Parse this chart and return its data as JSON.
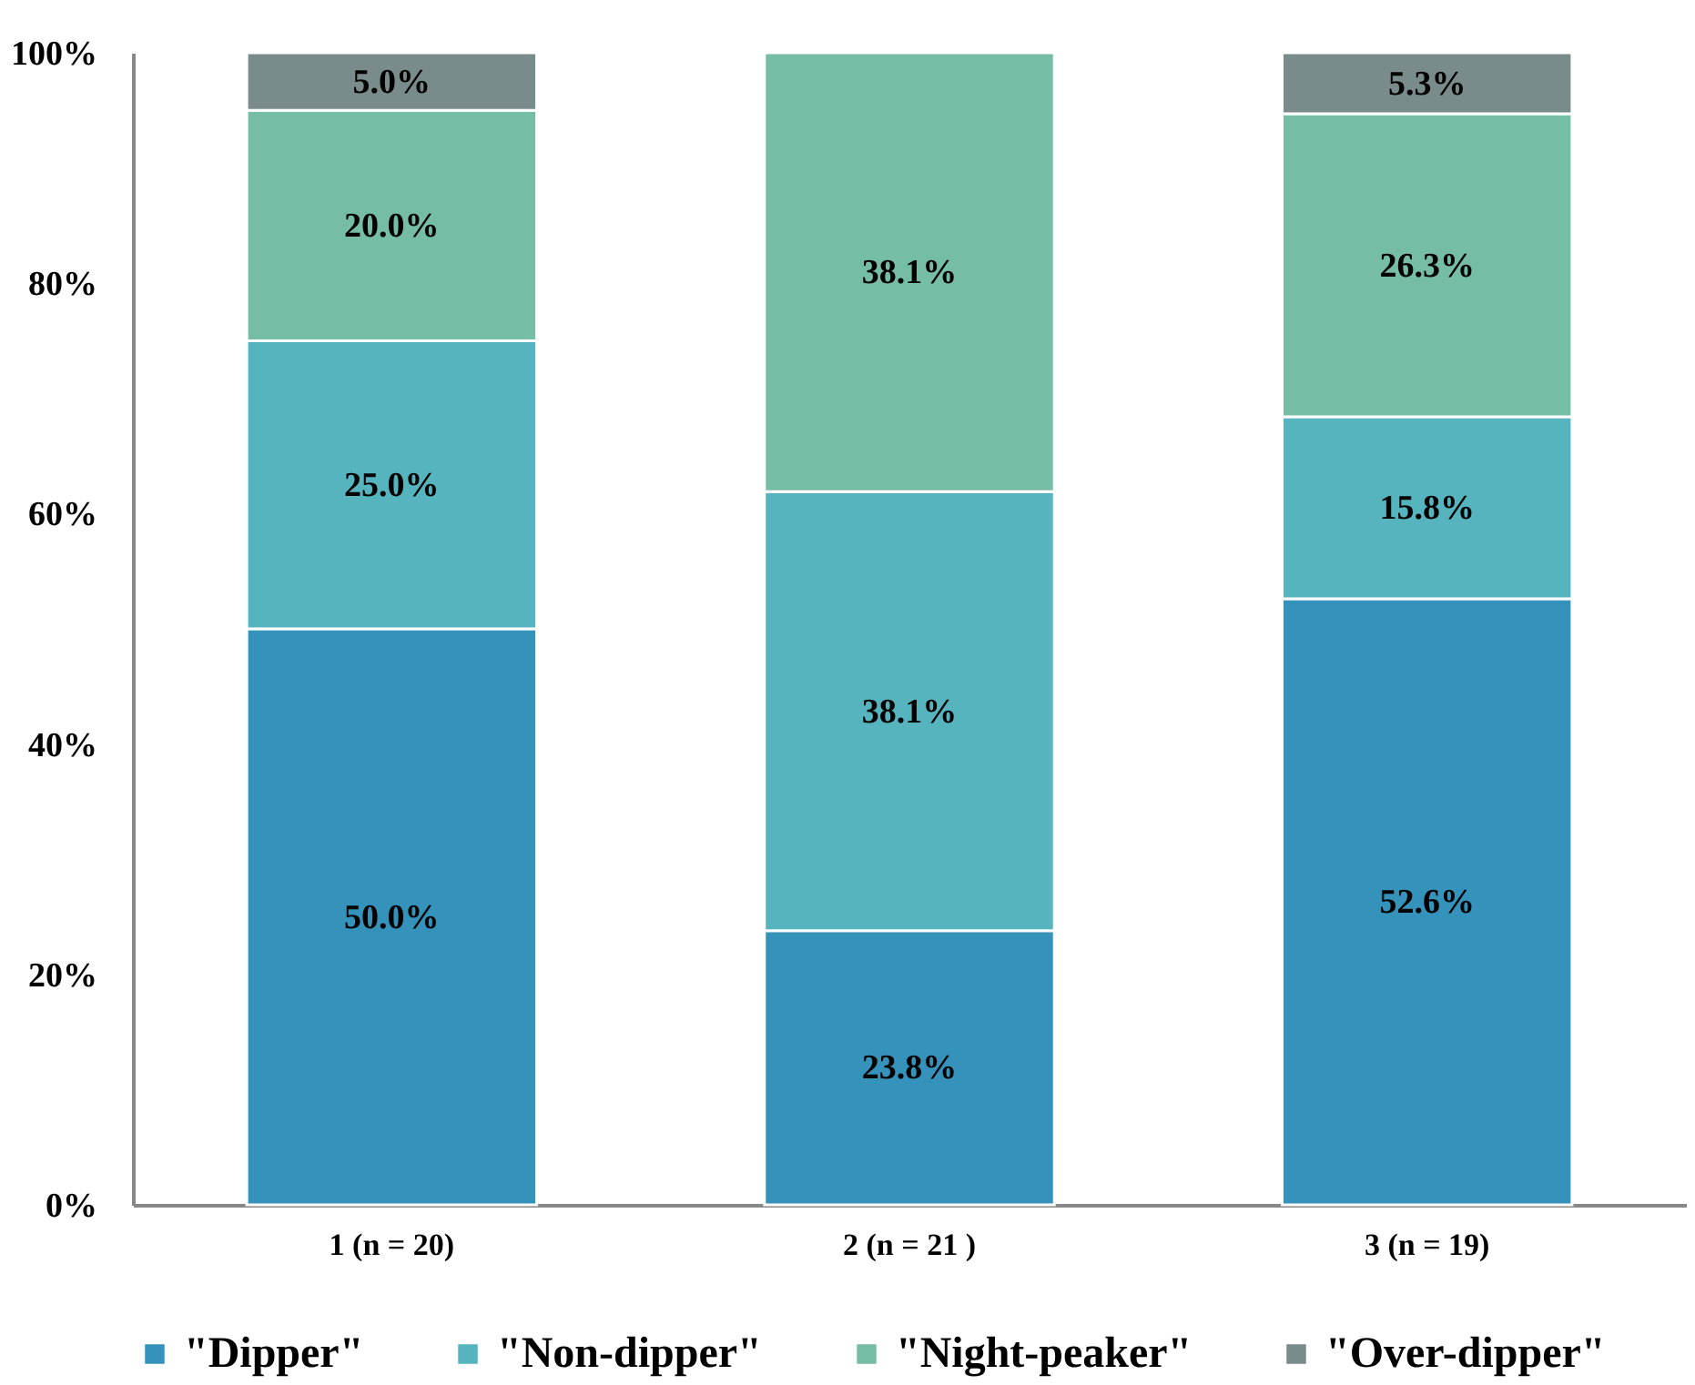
{
  "chart_data": {
    "type": "bar",
    "stacked": true,
    "categories": [
      "1 (n = 20)",
      "2 (n = 21 )",
      "3 (n = 19)"
    ],
    "series": [
      {
        "name": "\"Dipper\"",
        "color": "#3593bb",
        "values": [
          50.0,
          23.8,
          52.6
        ],
        "value_labels": [
          "50.0%",
          "23.8%",
          "52.6%"
        ]
      },
      {
        "name": "\"Non-dipper\"",
        "color": "#56b4bf",
        "values": [
          25.0,
          38.1,
          15.8
        ],
        "value_labels": [
          "25.0%",
          "38.1%",
          "15.8%"
        ]
      },
      {
        "name": "\"Night-peaker\"",
        "color": "#76bda6",
        "values": [
          20.0,
          38.1,
          26.3
        ],
        "value_labels": [
          "20.0%",
          "38.1%",
          "26.3%"
        ]
      },
      {
        "name": "\"Over-dipper\"",
        "color": "#7a8b8c",
        "values": [
          5.0,
          null,
          5.3
        ],
        "value_labels": [
          "5.0%",
          null,
          "5.3%"
        ]
      }
    ],
    "ylim": [
      0,
      100
    ],
    "yticks": [
      {
        "value": 0,
        "label": "0%"
      },
      {
        "value": 20,
        "label": "20%"
      },
      {
        "value": 40,
        "label": "40%"
      },
      {
        "value": 60,
        "label": "60%"
      },
      {
        "value": 80,
        "label": "80%"
      },
      {
        "value": 100,
        "label": "100%"
      }
    ],
    "grid": false,
    "legend": "bottom"
  }
}
